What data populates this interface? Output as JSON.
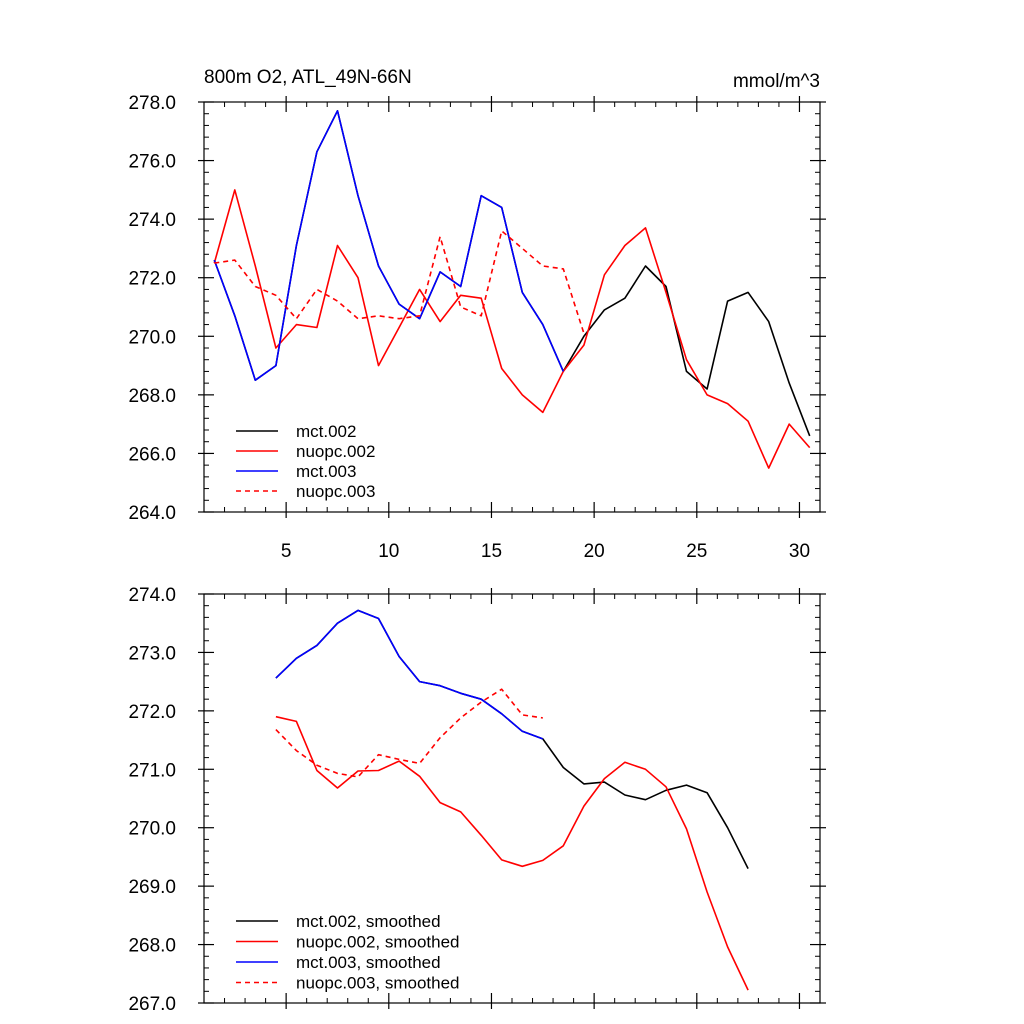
{
  "figure": {
    "title_left": "800m O2, ATL_49N-66N",
    "units": "mmol/m^3"
  },
  "chart_data": [
    {
      "type": "line",
      "title": "800m O2, ATL_49N-66N",
      "units": "mmol/m^3",
      "xlim": [
        1,
        31
      ],
      "ylim": [
        264,
        278
      ],
      "xticks": [
        5,
        10,
        15,
        20,
        25,
        30
      ],
      "yticks": [
        264,
        266,
        268,
        270,
        272,
        274,
        276,
        278
      ],
      "ytick_labels": [
        "264.0",
        "266.0",
        "268.0",
        "270.0",
        "272.0",
        "274.0",
        "276.0",
        "278.0"
      ],
      "xtick_labels": [
        "5",
        "10",
        "15",
        "20",
        "25",
        "30"
      ],
      "legend_position": "bottom-left",
      "series": [
        {
          "name": "mct.002",
          "color": "#000000",
          "dash": "solid",
          "x": [
            1.5,
            2.5,
            3.5,
            4.5,
            5.5,
            6.5,
            7.5,
            8.5,
            9.5,
            10.5,
            11.5,
            12.5,
            13.5,
            14.5,
            15.5,
            16.5,
            17.5,
            18.5,
            19.5,
            20.5,
            21.5,
            22.5,
            23.5,
            24.5,
            25.5,
            26.5,
            27.5,
            28.5,
            29.5,
            30.5
          ],
          "y": [
            272.6,
            270.7,
            268.5,
            269.0,
            273.1,
            276.3,
            277.7,
            274.8,
            272.4,
            271.1,
            270.6,
            272.2,
            271.7,
            274.8,
            274.4,
            271.5,
            270.4,
            268.8,
            270.0,
            270.9,
            271.3,
            272.4,
            271.7,
            268.8,
            268.2,
            271.2,
            271.5,
            270.5,
            268.4,
            266.6
          ]
        },
        {
          "name": "nuopc.002",
          "color": "#ff0000",
          "dash": "solid",
          "x": [
            1.5,
            2.5,
            3.5,
            4.5,
            5.5,
            6.5,
            7.5,
            8.5,
            9.5,
            10.5,
            11.5,
            12.5,
            13.5,
            14.5,
            15.5,
            16.5,
            17.5,
            18.5,
            19.5,
            20.5,
            21.5,
            22.5,
            23.5,
            24.5,
            25.5,
            26.5,
            27.5,
            28.5,
            29.5,
            30.5
          ],
          "y": [
            272.5,
            275.0,
            272.4,
            269.6,
            270.4,
            270.3,
            273.1,
            272.0,
            269.0,
            270.3,
            271.6,
            270.5,
            271.4,
            271.3,
            268.9,
            268.0,
            267.4,
            268.8,
            269.7,
            272.1,
            273.1,
            273.7,
            271.5,
            269.2,
            268.0,
            267.7,
            267.1,
            265.5,
            267.0,
            266.2
          ]
        },
        {
          "name": "mct.003",
          "color": "#0000ff",
          "dash": "solid",
          "x": [
            1.5,
            2.5,
            3.5,
            4.5,
            5.5,
            6.5,
            7.5,
            8.5,
            9.5,
            10.5,
            11.5,
            12.5,
            13.5,
            14.5,
            15.5,
            16.5,
            17.5,
            18.5
          ],
          "y": [
            272.6,
            270.7,
            268.5,
            269.0,
            273.1,
            276.3,
            277.7,
            274.8,
            272.4,
            271.1,
            270.6,
            272.2,
            271.7,
            274.8,
            274.4,
            271.5,
            270.4,
            268.8
          ]
        },
        {
          "name": "nuopc.003",
          "color": "#ff0000",
          "dash": "dashed",
          "x": [
            1.5,
            2.5,
            3.5,
            4.5,
            5.5,
            6.5,
            7.5,
            8.5,
            9.5,
            10.5,
            11.5,
            12.5,
            13.5,
            14.5,
            15.5,
            16.5,
            17.5,
            18.5,
            19.5
          ],
          "y": [
            272.5,
            272.6,
            271.7,
            271.4,
            270.6,
            271.6,
            271.2,
            270.6,
            270.7,
            270.6,
            270.7,
            273.4,
            271.0,
            270.7,
            273.6,
            273.0,
            272.4,
            272.3,
            270.1
          ]
        }
      ]
    },
    {
      "type": "line",
      "title": "",
      "xlim": [
        1,
        31
      ],
      "ylim": [
        267,
        274
      ],
      "xticks": [
        5,
        10,
        15,
        20,
        25,
        30
      ],
      "yticks": [
        267,
        268,
        269,
        270,
        271,
        272,
        273,
        274
      ],
      "ytick_labels": [
        "267.0",
        "268.0",
        "269.0",
        "270.0",
        "271.0",
        "272.0",
        "273.0",
        "274.0"
      ],
      "legend_position": "bottom-left",
      "series": [
        {
          "name": "mct.002, smoothed",
          "color": "#000000",
          "dash": "solid",
          "x": [
            4.5,
            5.5,
            6.5,
            7.5,
            8.5,
            9.5,
            10.5,
            11.5,
            12.5,
            13.5,
            14.5,
            15.5,
            16.5,
            17.5,
            18.5,
            19.5,
            20.5,
            21.5,
            22.5,
            23.5,
            24.5,
            25.5,
            26.5,
            27.5
          ],
          "y": [
            272.56,
            272.9,
            273.12,
            273.5,
            273.72,
            273.58,
            272.93,
            272.5,
            272.43,
            272.3,
            272.2,
            271.95,
            271.65,
            271.52,
            271.03,
            270.75,
            270.78,
            270.56,
            270.48,
            270.64,
            270.73,
            270.6,
            270.0,
            269.3
          ]
        },
        {
          "name": "nuopc.002, smoothed",
          "color": "#ff0000",
          "dash": "solid",
          "x": [
            4.5,
            5.5,
            6.5,
            7.5,
            8.5,
            9.5,
            10.5,
            11.5,
            12.5,
            13.5,
            14.5,
            15.5,
            16.5,
            17.5,
            18.5,
            19.5,
            20.5,
            21.5,
            22.5,
            23.5,
            24.5,
            25.5,
            26.5,
            27.5
          ],
          "y": [
            271.9,
            271.82,
            270.98,
            270.68,
            270.97,
            270.98,
            271.14,
            270.88,
            270.43,
            270.27,
            269.87,
            269.45,
            269.34,
            269.44,
            269.69,
            270.37,
            270.84,
            271.12,
            271.0,
            270.7,
            269.98,
            268.9,
            267.96,
            267.22
          ]
        },
        {
          "name": "mct.003, smoothed",
          "color": "#0000ff",
          "dash": "solid",
          "x": [
            4.5,
            5.5,
            6.5,
            7.5,
            8.5,
            9.5,
            10.5,
            11.5,
            12.5,
            13.5,
            14.5,
            15.5,
            16.5,
            17.5
          ],
          "y": [
            272.56,
            272.9,
            273.12,
            273.5,
            273.72,
            273.58,
            272.93,
            272.5,
            272.43,
            272.3,
            272.2,
            271.95,
            271.65,
            271.52
          ]
        },
        {
          "name": "nuopc.003, smoothed",
          "color": "#ff0000",
          "dash": "dashed",
          "x": [
            4.5,
            5.5,
            6.5,
            7.5,
            8.5,
            9.5,
            10.5,
            11.5,
            12.5,
            13.5,
            14.5,
            15.5,
            16.5,
            17.5
          ],
          "y": [
            271.68,
            271.32,
            271.07,
            270.93,
            270.87,
            271.25,
            271.17,
            271.1,
            271.54,
            271.88,
            272.15,
            272.37,
            271.93,
            271.88
          ]
        }
      ]
    }
  ]
}
